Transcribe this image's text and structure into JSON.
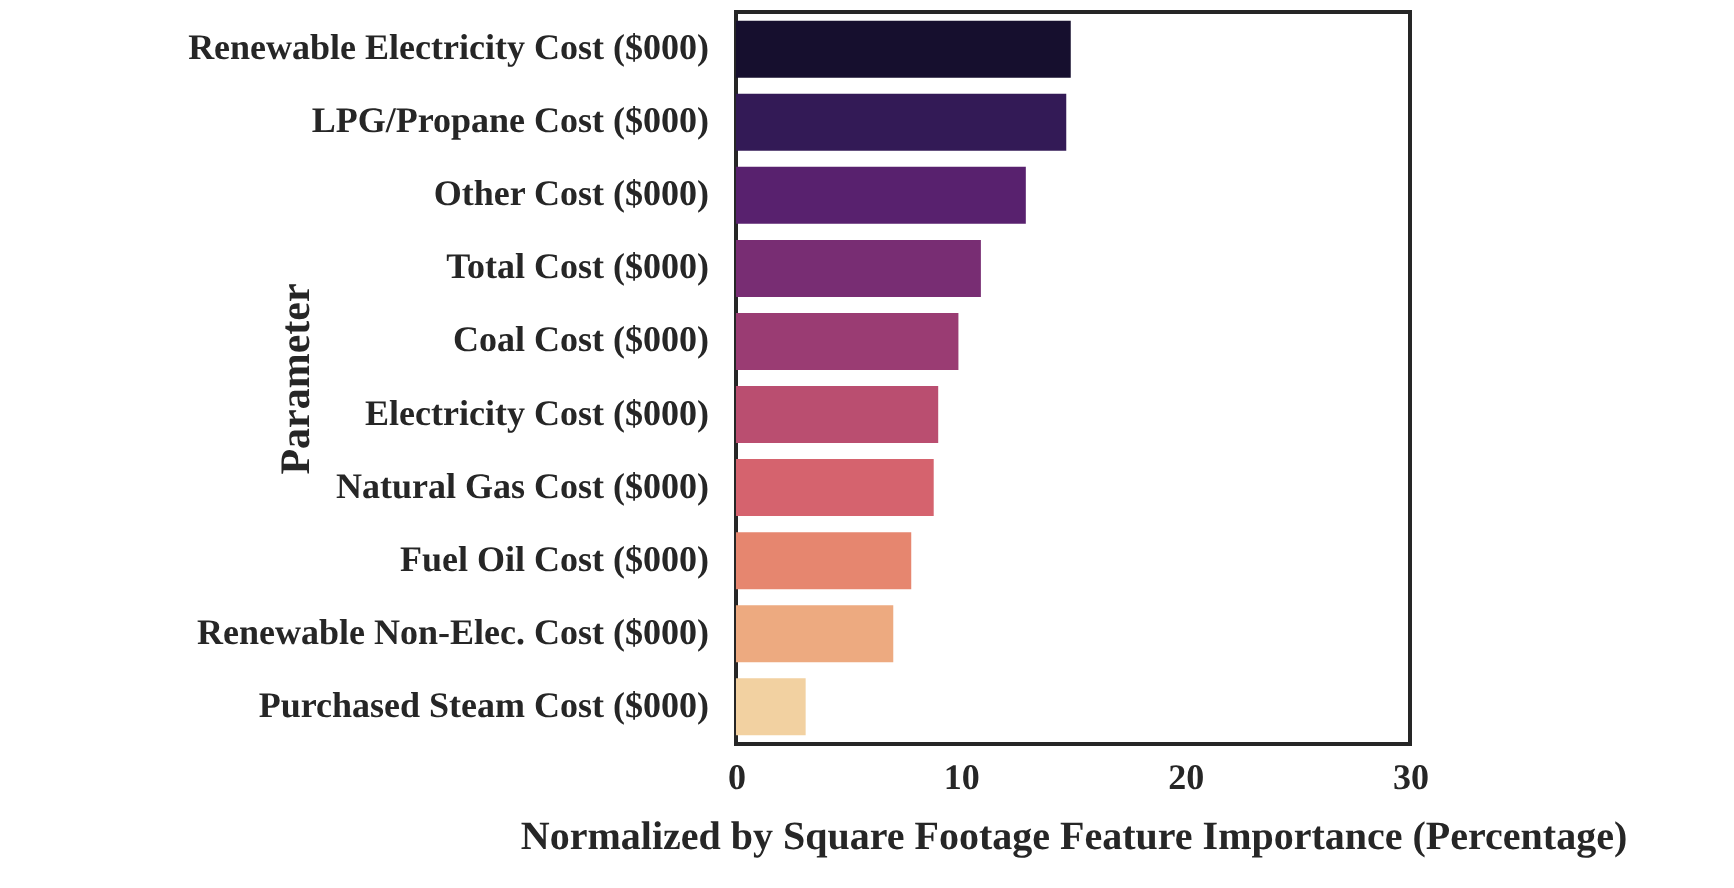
{
  "chart_data": {
    "type": "bar",
    "orientation": "horizontal",
    "xlabel": "Normalized by Square Footage Feature Importance (Percentage)",
    "ylabel": "Parameter",
    "categories": [
      "Renewable Electricity Cost ($000)",
      "LPG/Propane Cost ($000)",
      "Other Cost ($000)",
      "Total Cost ($000)",
      "Coal Cost ($000)",
      "Electricity Cost ($000)",
      "Natural Gas Cost ($000)",
      "Fuel Oil Cost ($000)",
      "Renewable Non-Elec. Cost ($000)",
      "Purchased Steam Cost ($000)"
    ],
    "values": [
      14.9,
      14.7,
      12.9,
      10.9,
      9.9,
      9.0,
      8.8,
      7.8,
      7.0,
      3.1
    ],
    "colors": [
      "#160f2e",
      "#331a56",
      "#58216e",
      "#782d73",
      "#9a3c73",
      "#ba4e70",
      "#d5636e",
      "#e6866f",
      "#edaa80",
      "#f2d1a1"
    ],
    "xlim": [
      0,
      30
    ],
    "xticks": [
      0,
      10,
      20,
      30
    ],
    "grid": false
  }
}
